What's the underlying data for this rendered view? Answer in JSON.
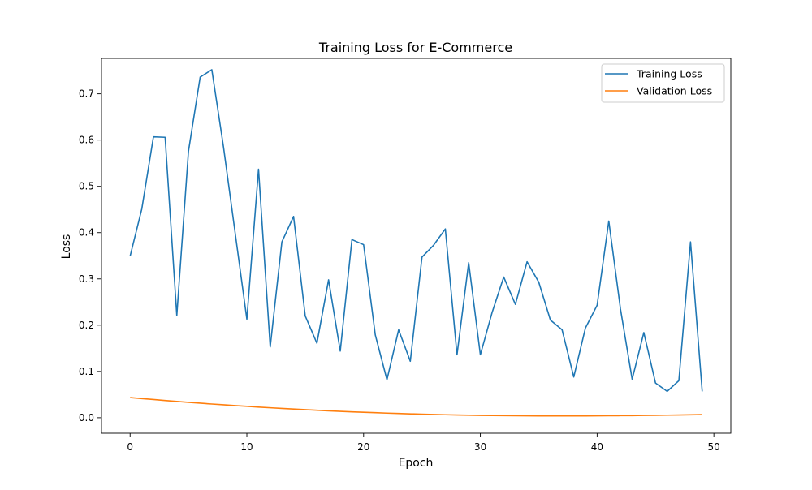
{
  "chart_data": {
    "type": "line",
    "title": "Training Loss for E-Commerce",
    "xlabel": "Epoch",
    "ylabel": "Loss",
    "xlim": [
      -2.45,
      51.45
    ],
    "ylim": [
      -0.0335,
      0.7765
    ],
    "xticks": [
      0,
      10,
      20,
      30,
      40,
      50
    ],
    "yticks": [
      0.0,
      0.1,
      0.2,
      0.3,
      0.4,
      0.5,
      0.6,
      0.7
    ],
    "ytick_labels": [
      "0.0",
      "0.1",
      "0.2",
      "0.3",
      "0.4",
      "0.5",
      "0.6",
      "0.7"
    ],
    "grid": false,
    "legend_position": "top-right",
    "x": [
      0,
      1,
      2,
      3,
      4,
      5,
      6,
      7,
      8,
      9,
      10,
      11,
      12,
      13,
      14,
      15,
      16,
      17,
      18,
      19,
      20,
      21,
      22,
      23,
      24,
      25,
      26,
      27,
      28,
      29,
      30,
      31,
      32,
      33,
      34,
      35,
      36,
      37,
      38,
      39,
      40,
      41,
      42,
      43,
      44,
      45,
      46,
      47,
      48,
      49
    ],
    "series": [
      {
        "name": "Training Loss",
        "color": "#1f77b4",
        "values": [
          0.349,
          0.451,
          0.607,
          0.606,
          0.221,
          0.576,
          0.736,
          0.752,
          0.585,
          0.399,
          0.213,
          0.537,
          0.153,
          0.38,
          0.435,
          0.22,
          0.161,
          0.298,
          0.144,
          0.385,
          0.374,
          0.179,
          0.082,
          0.19,
          0.122,
          0.347,
          0.373,
          0.408,
          0.136,
          0.335,
          0.136,
          0.227,
          0.304,
          0.245,
          0.337,
          0.293,
          0.211,
          0.19,
          0.088,
          0.194,
          0.243,
          0.425,
          0.235,
          0.083,
          0.184,
          0.075,
          0.057,
          0.08,
          0.38,
          0.057
        ]
      },
      {
        "name": "Validation Loss",
        "color": "#ff7f0e",
        "values": [
          0.0436,
          0.0414,
          0.0393,
          0.0372,
          0.0352,
          0.0333,
          0.0314,
          0.0296,
          0.0279,
          0.0262,
          0.0246,
          0.023,
          0.0215,
          0.0201,
          0.0187,
          0.0174,
          0.0161,
          0.0149,
          0.0138,
          0.0127,
          0.0117,
          0.0108,
          0.0099,
          0.0091,
          0.0083,
          0.0076,
          0.007,
          0.0064,
          0.0059,
          0.0054,
          0.005,
          0.0047,
          0.0044,
          0.0042,
          0.004,
          0.0039,
          0.0038,
          0.0038,
          0.0038,
          0.0039,
          0.004,
          0.0042,
          0.0044,
          0.0046,
          0.0049,
          0.0052,
          0.0055,
          0.0059,
          0.0063,
          0.0067
        ]
      }
    ]
  }
}
